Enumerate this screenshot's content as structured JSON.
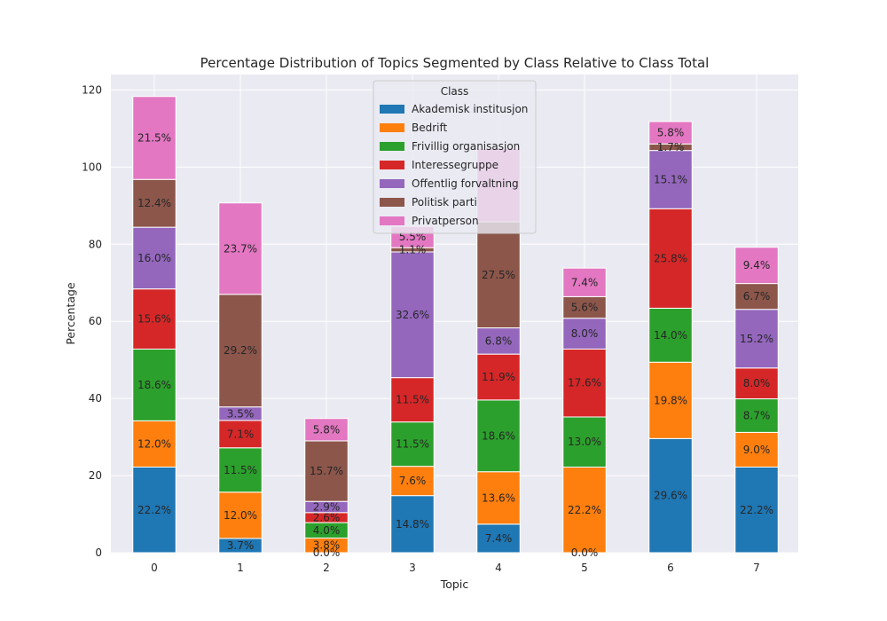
{
  "chart_data": {
    "type": "bar",
    "stacked": true,
    "title": "Percentage Distribution of Topics Segmented by Class Relative to Class Total",
    "xlabel": "Topic",
    "ylabel": "Percentage",
    "categories": [
      "0",
      "1",
      "2",
      "3",
      "4",
      "5",
      "6",
      "7"
    ],
    "ylim": [
      0,
      124
    ],
    "yticks": [
      0,
      20,
      40,
      60,
      80,
      100,
      120
    ],
    "grid": true,
    "legend": {
      "title": "Class",
      "placement": "top-center"
    },
    "series": [
      {
        "name": "Akademisk institusjon",
        "color": "#1f77b4",
        "values": [
          22.2,
          3.7,
          0.0,
          14.8,
          7.4,
          0.0,
          29.6,
          22.2
        ],
        "labels": [
          "22.2%",
          "3.7%",
          "0.0%",
          "14.8%",
          "7.4%",
          "0.0%",
          "29.6%",
          "22.2%"
        ]
      },
      {
        "name": "Bedrift",
        "color": "#ff7f0e",
        "values": [
          12.0,
          12.0,
          3.8,
          7.6,
          13.6,
          22.2,
          19.8,
          9.0
        ],
        "labels": [
          "12.0%",
          "12.0%",
          "3.8%",
          "7.6%",
          "13.6%",
          "22.2%",
          "19.8%",
          "9.0%"
        ]
      },
      {
        "name": "Frivillig organisasjon",
        "color": "#2ca02c",
        "values": [
          18.6,
          11.5,
          4.0,
          11.5,
          18.6,
          13.0,
          14.0,
          8.7
        ],
        "labels": [
          "18.6%",
          "11.5%",
          "4.0%",
          "11.5%",
          "18.6%",
          "13.0%",
          "14.0%",
          "8.7%"
        ]
      },
      {
        "name": "Interessegruppe",
        "color": "#d62728",
        "values": [
          15.6,
          7.1,
          2.6,
          11.5,
          11.9,
          17.6,
          25.8,
          8.0
        ],
        "labels": [
          "15.6%",
          "7.1%",
          "2.6%",
          "11.5%",
          "11.9%",
          "17.6%",
          "25.8%",
          "8.0%"
        ]
      },
      {
        "name": "Offentlig forvaltning",
        "color": "#9467bd",
        "values": [
          16.0,
          3.5,
          2.9,
          32.6,
          6.8,
          8.0,
          15.1,
          15.2
        ],
        "labels": [
          "16.0%",
          "3.5%",
          "2.9%",
          "32.6%",
          "6.8%",
          "8.0%",
          "15.1%",
          "15.2%"
        ]
      },
      {
        "name": "Politisk parti",
        "color": "#8c564b",
        "values": [
          12.4,
          29.2,
          15.7,
          1.1,
          27.5,
          5.6,
          1.7,
          6.7
        ],
        "labels": [
          "12.4%",
          "29.2%",
          "15.7%",
          "1.1%",
          "27.5%",
          "5.6%",
          "1.7%",
          "6.7%"
        ]
      },
      {
        "name": "Privatperson",
        "color": "#e377c2",
        "values": [
          21.5,
          23.7,
          5.8,
          5.5,
          19.0,
          7.4,
          5.8,
          9.4
        ],
        "labels": [
          "21.5%",
          "23.7%",
          "5.8%",
          "5.5%",
          "",
          "7.4%",
          "5.8%",
          "9.4%"
        ]
      }
    ],
    "colors": {
      "plot_background": "#eaeaf2",
      "grid": "#ffffff",
      "bar_edge": "#ffffff"
    }
  }
}
